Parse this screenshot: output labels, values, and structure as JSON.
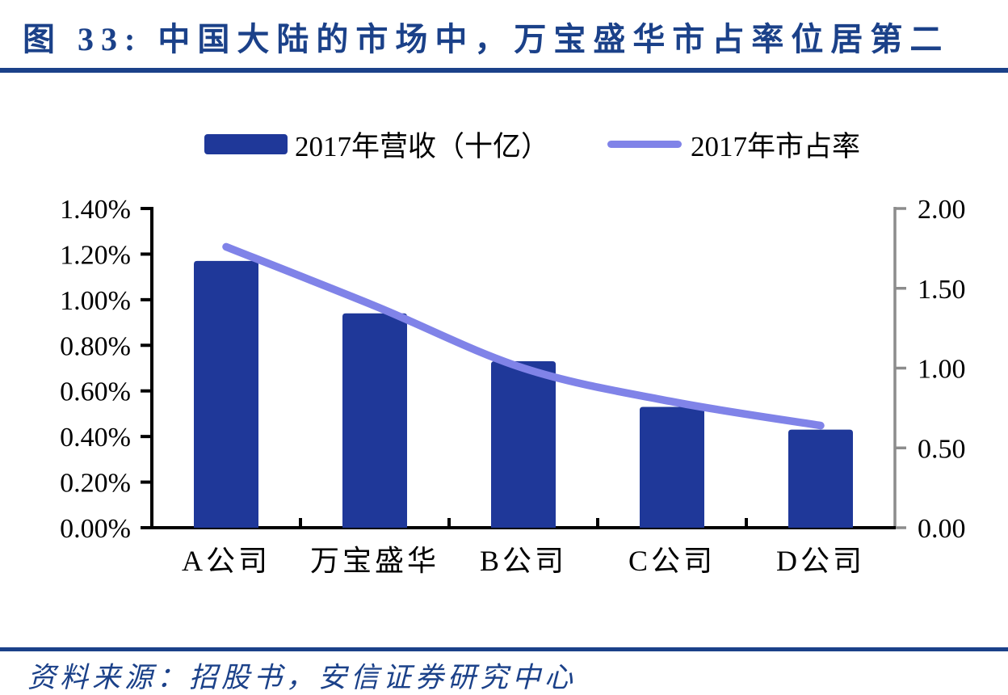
{
  "page": {
    "accent_navy": "#1B4189",
    "background": "#FFFFFF"
  },
  "header": {
    "title": "图 33: 中国大陆的市场中，万宝盛华市占率位居第二"
  },
  "legend": {
    "position": "top",
    "items": [
      {
        "label": "2017年营收（十亿）",
        "marker": "bar-swatch",
        "color": "#1F3899"
      },
      {
        "label": "2017年市占率",
        "marker": "line-swatch",
        "color": "#8083E8"
      }
    ]
  },
  "footer": {
    "source": "资料来源：招股书，安信证券研究中心"
  },
  "chart_data": {
    "type": "combo",
    "categories": [
      "A公司",
      "万宝盛华",
      "B公司",
      "C公司",
      "D公司"
    ],
    "series": [
      {
        "name": "2017年营收（十亿）",
        "type": "bar",
        "axis": "left",
        "color": "#1F3899",
        "value_format": "percent",
        "values": [
          1.17,
          0.94,
          0.73,
          0.53,
          0.43
        ]
      },
      {
        "name": "2017年市占率",
        "type": "line",
        "axis": "right",
        "color": "#8083E8",
        "values": [
          1.76,
          1.39,
          1.0,
          0.79,
          0.64
        ]
      }
    ],
    "left_axis": {
      "min": 0,
      "max": 1.4,
      "step": 0.2,
      "tick_labels": [
        "0.00%",
        "0.20%",
        "0.40%",
        "0.60%",
        "0.80%",
        "1.00%",
        "1.20%",
        "1.40%"
      ],
      "line_color": "#000000"
    },
    "right_axis": {
      "min": 0,
      "max": 2.0,
      "step": 0.5,
      "tick_labels": [
        "0.00",
        "0.50",
        "1.00",
        "1.50",
        "2.00"
      ],
      "line_color": "#8C8C8C"
    },
    "grid": false,
    "legend_position": "top"
  }
}
